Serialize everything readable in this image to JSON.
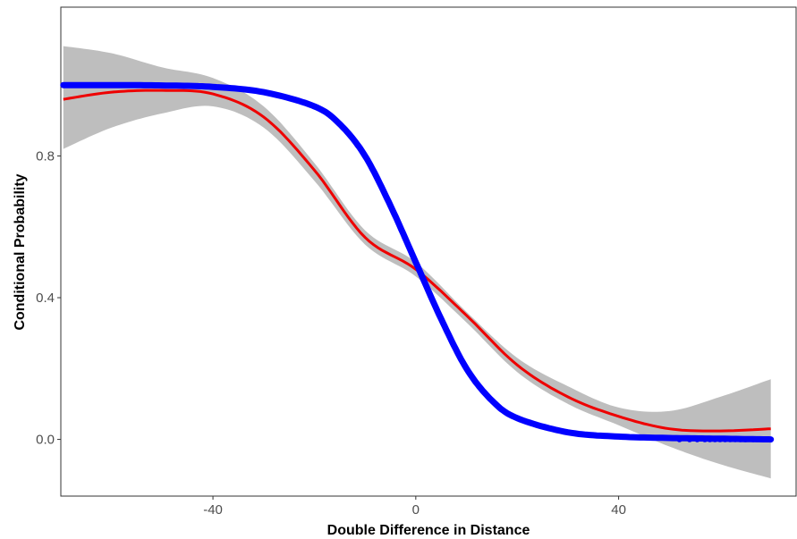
{
  "chart_data": {
    "type": "line",
    "title": "",
    "xlabel": "Double Difference in Distance",
    "ylabel": "Conditional Probability",
    "xlim": [
      -70,
      75
    ],
    "ylim": [
      -0.16,
      1.22
    ],
    "x_ticks": [
      -40,
      0,
      40
    ],
    "x_tick_labels": [
      "-40",
      "0",
      "40"
    ],
    "y_ticks": [
      0.0,
      0.4,
      0.8
    ],
    "y_tick_labels": [
      "0.0",
      "0.4",
      "0.8"
    ],
    "grid": false,
    "legend": "none",
    "series": [
      {
        "kind": "ribbon",
        "color": "#bebebe",
        "x": [
          -69.5,
          -60,
          -50,
          -40,
          -30,
          -20,
          -10,
          0,
          10,
          20,
          30,
          40,
          50,
          60,
          70
        ],
        "y_low": [
          0.82,
          0.88,
          0.92,
          0.94,
          0.88,
          0.73,
          0.55,
          0.46,
          0.33,
          0.19,
          0.1,
          0.04,
          -0.02,
          -0.07,
          -0.11
        ],
        "y_high": [
          1.11,
          1.09,
          1.05,
          1.02,
          0.94,
          0.78,
          0.59,
          0.5,
          0.36,
          0.23,
          0.15,
          0.09,
          0.08,
          0.12,
          0.17
        ]
      },
      {
        "kind": "line",
        "color": "#ee0000",
        "x": [
          -69.5,
          -60,
          -50,
          -40,
          -30,
          -20,
          -10,
          0,
          10,
          20,
          30,
          40,
          50,
          60,
          70
        ],
        "y": [
          0.96,
          0.98,
          0.985,
          0.975,
          0.91,
          0.76,
          0.57,
          0.48,
          0.35,
          0.21,
          0.12,
          0.065,
          0.03,
          0.024,
          0.03
        ]
      },
      {
        "kind": "scatter-line",
        "color": "#0000ff",
        "x": [
          -69.5,
          -60,
          -50,
          -40,
          -30,
          -20,
          -15,
          -10,
          -5,
          0,
          5,
          10,
          15,
          20,
          30,
          40,
          50,
          60,
          70
        ],
        "y": [
          1.0,
          1.0,
          0.999,
          0.995,
          0.98,
          0.94,
          0.89,
          0.8,
          0.66,
          0.5,
          0.34,
          0.2,
          0.11,
          0.06,
          0.02,
          0.008,
          0.004,
          0.002,
          0.0
        ]
      }
    ]
  }
}
